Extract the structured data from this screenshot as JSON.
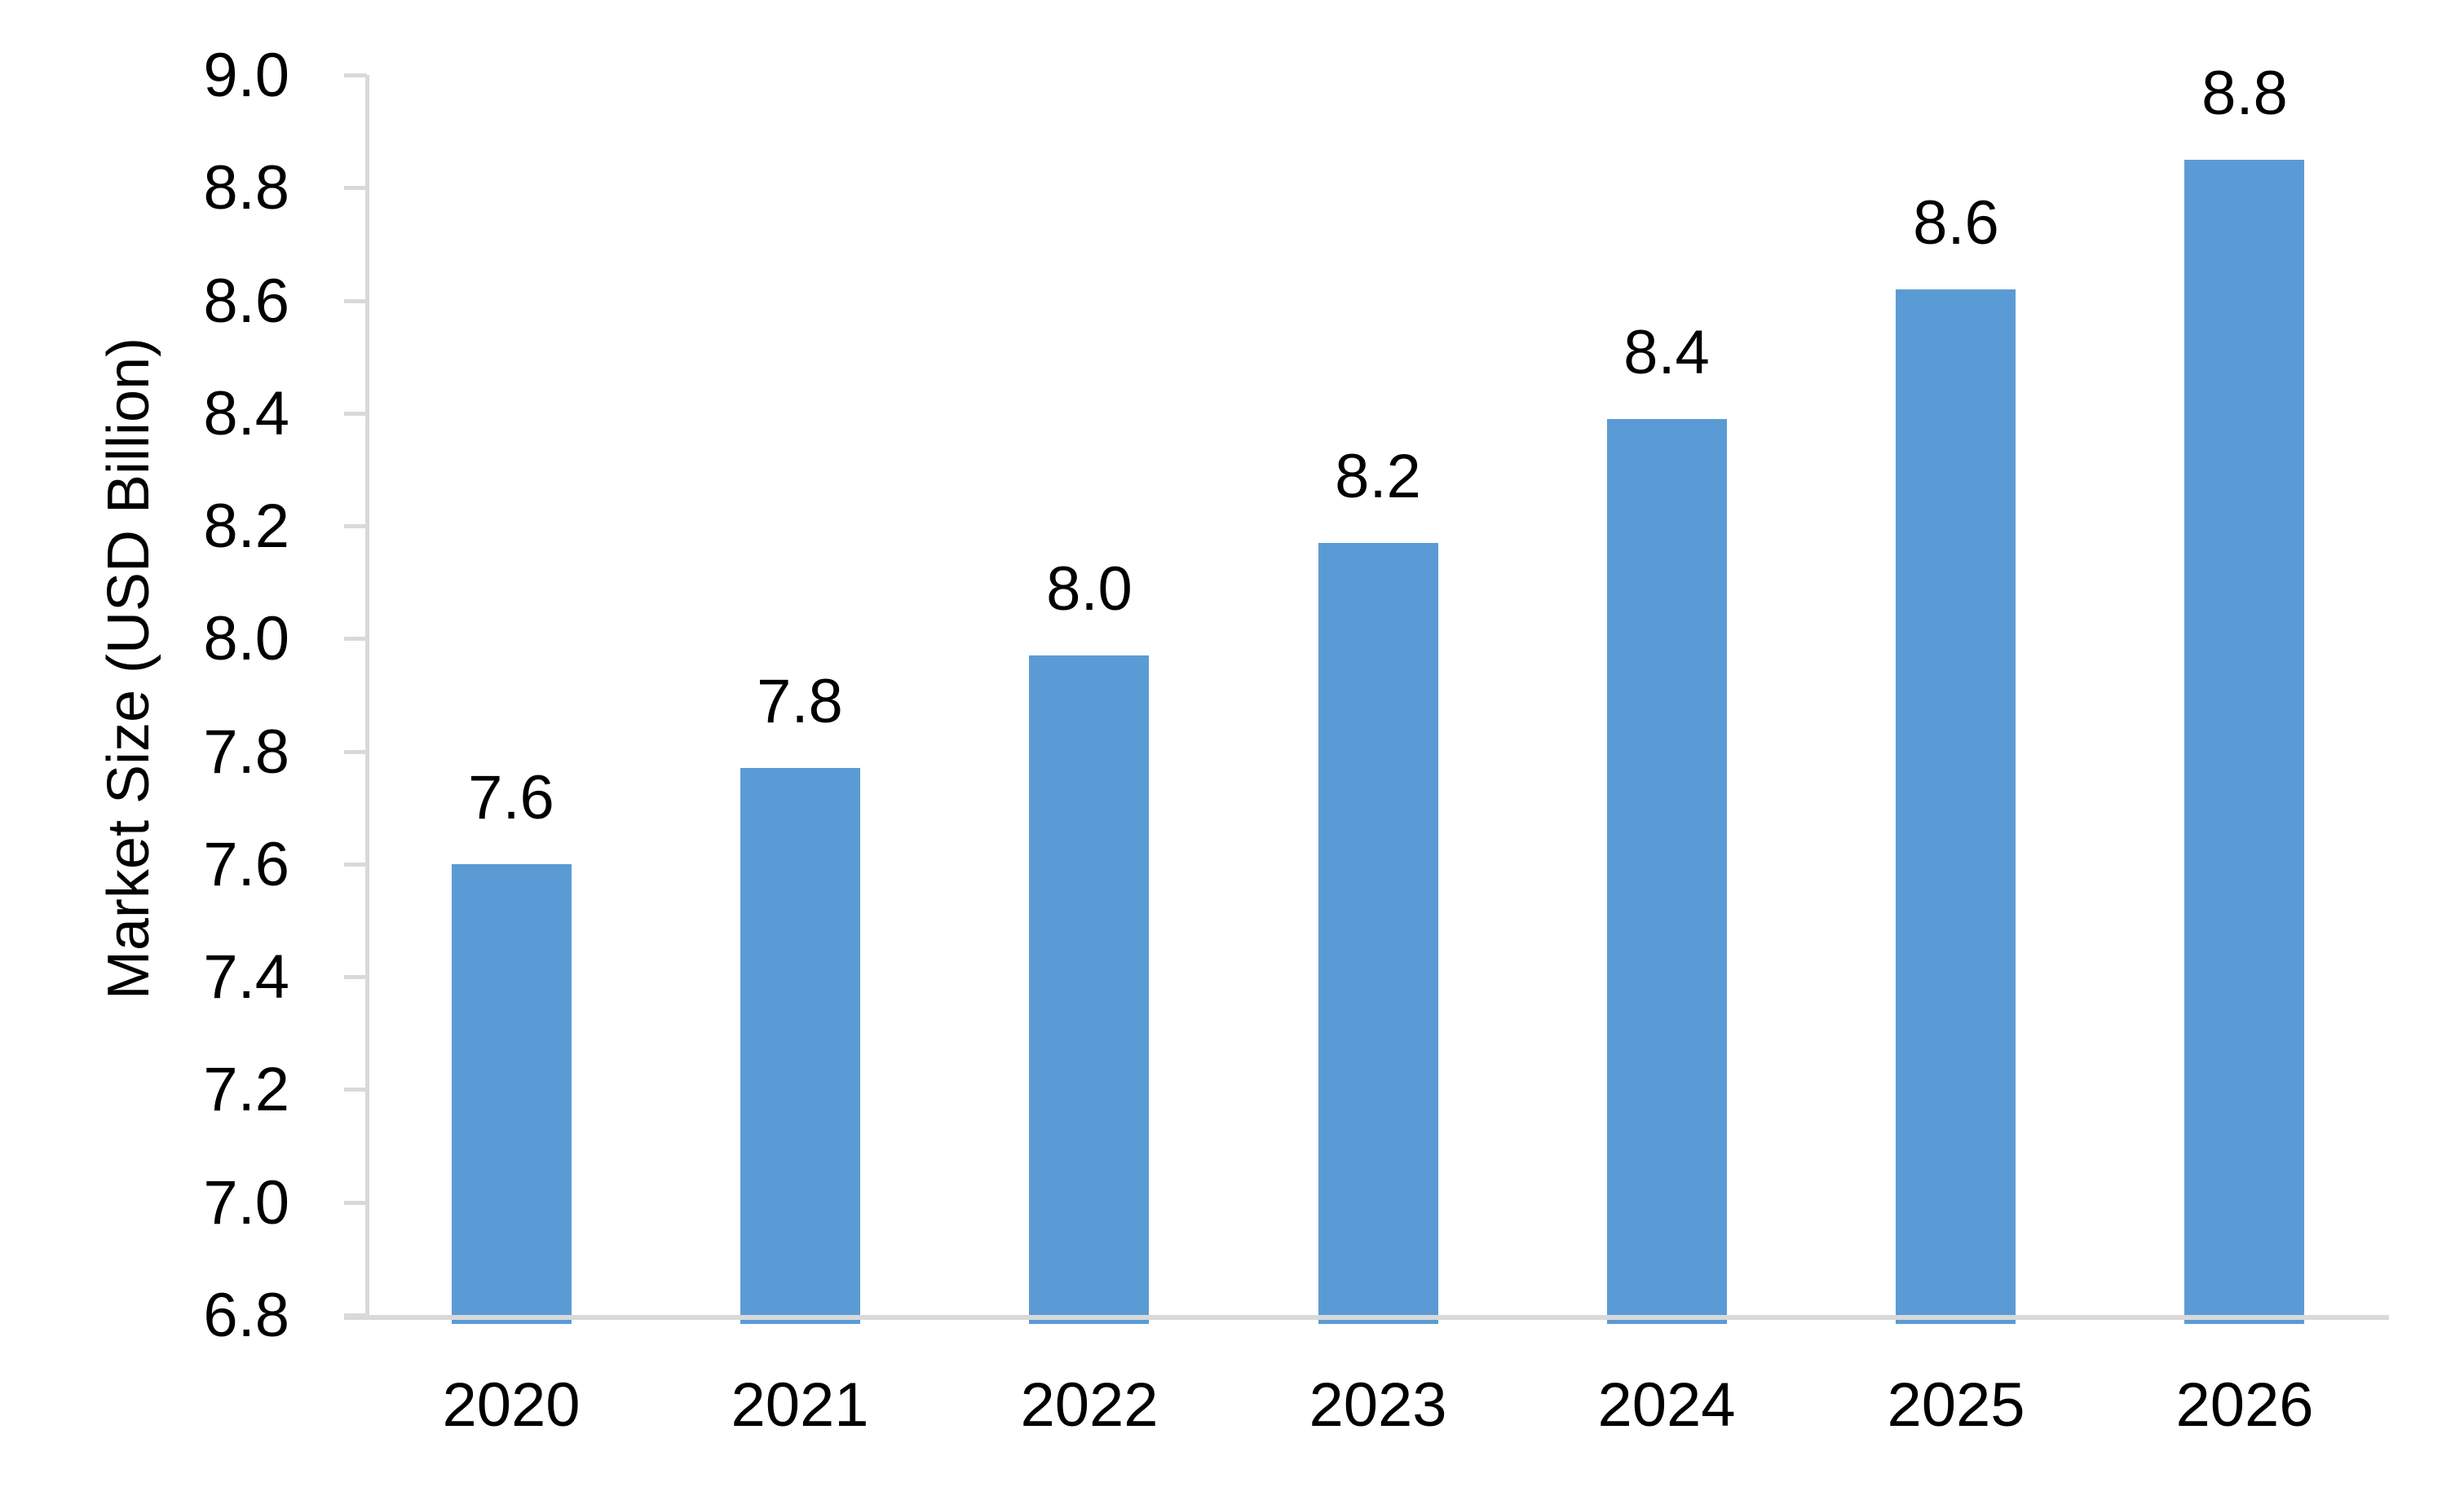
{
  "chart_data": {
    "type": "bar",
    "title": "",
    "ylabel": "Market Size (USD Billion)",
    "xlabel": "",
    "categories": [
      "2020",
      "2021",
      "2022",
      "2023",
      "2024",
      "2025",
      "2026"
    ],
    "values": [
      7.6,
      7.8,
      8.0,
      8.2,
      8.4,
      8.6,
      8.8
    ],
    "data_labels": [
      "7.6",
      "7.8",
      "8.0",
      "8.2",
      "8.4",
      "8.6",
      "8.8"
    ],
    "bar_heights_estimated": [
      7.6,
      7.77,
      7.97,
      8.17,
      8.39,
      8.62,
      8.85
    ],
    "series": [
      {
        "name": "Market Size",
        "values": [
          7.6,
          7.8,
          8.0,
          8.2,
          8.4,
          8.6,
          8.8
        ]
      }
    ],
    "y_tick_labels": [
      "9.0",
      "8.8",
      "8.6",
      "8.4",
      "8.2",
      "8.0",
      "7.8",
      "7.6",
      "7.4",
      "7.2",
      "7.0",
      "6.8"
    ],
    "y_ticks": [
      9.0,
      8.8,
      8.6,
      8.4,
      8.2,
      8.0,
      7.8,
      7.6,
      7.4,
      7.2,
      7.0,
      6.8
    ],
    "ylim": [
      6.8,
      9.0
    ],
    "y_tick_step": 0.2,
    "grid": false,
    "legend": "none",
    "data_labels_position": "above-bars",
    "colors": {
      "bar_fill": "#5B9BD5",
      "axis_line": "#D9D9D9",
      "tick_mark": "#D9D9D9",
      "text": "#000000",
      "background": "#FFFFFF"
    }
  }
}
